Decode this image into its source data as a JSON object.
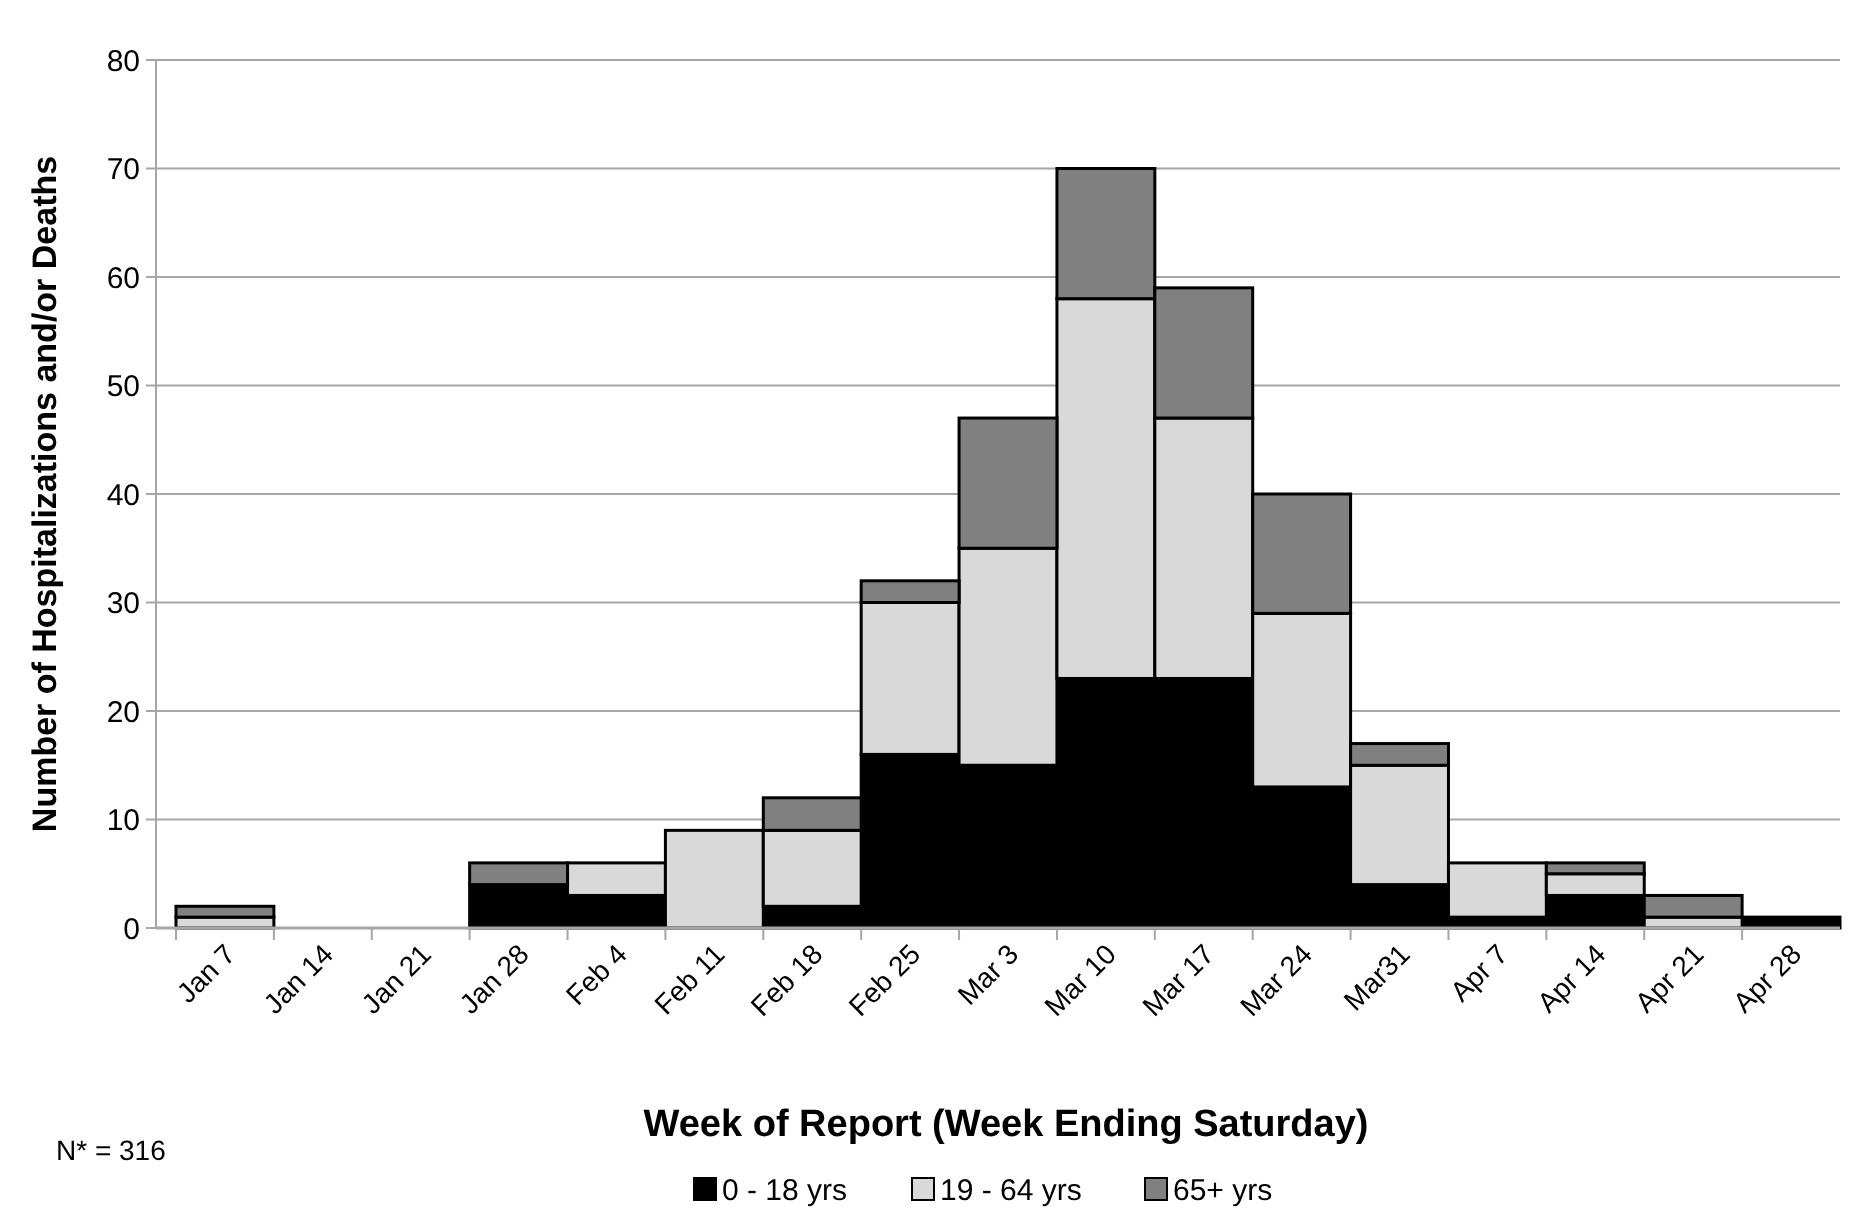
{
  "chart_data": {
    "type": "bar",
    "stacked": true,
    "xlabel": "Week of Report (Week Ending Saturday)",
    "ylabel": "Number of Hospitalizations and/or Deaths",
    "categories": [
      "Jan 7",
      "Jan 14",
      "Jan 21",
      "Jan 28",
      "Feb 4",
      "Feb 11",
      "Feb 18",
      "Feb 25",
      "Mar 3",
      "Mar 10",
      "Mar 17",
      "Mar 24",
      "Mar31",
      "Apr 7",
      "Apr 14",
      "Apr 21",
      "Apr 28"
    ],
    "series": [
      {
        "name": "0 - 18 yrs",
        "color": "#000000",
        "values": [
          0,
          0,
          0,
          4,
          3,
          0,
          2,
          16,
          15,
          23,
          23,
          13,
          4,
          1,
          3,
          0,
          1
        ]
      },
      {
        "name": "19 - 64 yrs",
        "color": "#d9d9d9",
        "values": [
          1,
          0,
          0,
          0,
          3,
          9,
          7,
          14,
          20,
          35,
          24,
          16,
          11,
          5,
          2,
          1,
          0
        ]
      },
      {
        "name": "65+ yrs",
        "color": "#808080",
        "values": [
          1,
          0,
          0,
          2,
          0,
          0,
          3,
          2,
          12,
          12,
          12,
          11,
          2,
          0,
          1,
          2,
          0
        ]
      }
    ],
    "ylim": [
      0,
      80
    ],
    "yticks": [
      0,
      10,
      20,
      30,
      40,
      50,
      60,
      70,
      80
    ],
    "grid": "y",
    "legend": "bottom",
    "annotations": [
      "N* = 316"
    ]
  }
}
